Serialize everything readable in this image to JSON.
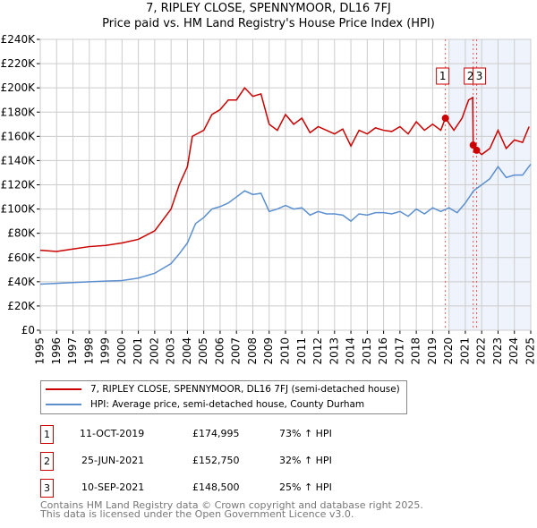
{
  "title1": "7, RIPLEY CLOSE, SPENNYMOOR, DL16 7FJ",
  "title2": "Price paid vs. HM Land Registry's House Price Index (HPI)",
  "chart_data": {
    "type": "line",
    "title": "7, RIPLEY CLOSE, SPENNYMOOR, DL16 7FJ - Price paid vs. HM Land Registry's House Price Index (HPI)",
    "xlim": [
      1995,
      2025
    ],
    "ylim": [
      0,
      240000
    ],
    "yticks": [
      0,
      20000,
      40000,
      60000,
      80000,
      100000,
      120000,
      140000,
      160000,
      180000,
      200000,
      220000,
      240000
    ],
    "ytick_labels": [
      "£0",
      "£20K",
      "£40K",
      "£60K",
      "£80K",
      "£100K",
      "£120K",
      "£140K",
      "£160K",
      "£180K",
      "£200K",
      "£220K",
      "£240K"
    ],
    "xticks": [
      1995,
      1996,
      1997,
      1998,
      1999,
      2000,
      2001,
      2002,
      2003,
      2004,
      2005,
      2006,
      2007,
      2008,
      2009,
      2010,
      2011,
      2012,
      2013,
      2014,
      2015,
      2016,
      2017,
      2018,
      2019,
      2020,
      2021,
      2022,
      2023,
      2024,
      2025
    ],
    "grid": true,
    "shaded_region": [
      2020,
      2025
    ],
    "colors": {
      "property": "#cc0000",
      "hpi": "#5b8fd0",
      "shade": "#eef3fc"
    },
    "series": [
      {
        "name": "7, RIPLEY CLOSE, SPENNYMOOR, DL16 7FJ (semi-detached house)",
        "color": "#cc0000",
        "x": [
          1995,
          1996,
          1997,
          1998,
          1999,
          2000,
          2001,
          2002,
          2003,
          2003.5,
          2004,
          2004.3,
          2005,
          2005.5,
          2006,
          2006.5,
          2007,
          2007.5,
          2008,
          2008.5,
          2009,
          2009.5,
          2010,
          2010.5,
          2011,
          2011.5,
          2012,
          2012.5,
          2013,
          2013.5,
          2014,
          2014.5,
          2015,
          2015.5,
          2016,
          2016.5,
          2017,
          2017.5,
          2018,
          2018.5,
          2019,
          2019.5,
          2019.78,
          2020.3,
          2020.8,
          2021.2,
          2021.45,
          2021.48,
          2021.69,
          2022,
          2022.5,
          2023,
          2023.5,
          2024,
          2024.5,
          2024.9
        ],
        "y": [
          66000,
          65000,
          67000,
          69000,
          70000,
          72000,
          75000,
          82000,
          100000,
          120000,
          135000,
          160000,
          165000,
          178000,
          182000,
          190000,
          190000,
          200000,
          193000,
          195000,
          170000,
          165000,
          178000,
          170000,
          175000,
          163000,
          168000,
          165000,
          162000,
          166000,
          152000,
          165000,
          162000,
          167000,
          165000,
          164000,
          168000,
          162000,
          172000,
          165000,
          170000,
          165000,
          174995,
          165000,
          175000,
          190000,
          192000,
          152750,
          148500,
          145000,
          150000,
          165000,
          150000,
          157000,
          155000,
          168000
        ]
      },
      {
        "name": "HPI: Average price, semi-detached house, County Durham",
        "color": "#5b8fd0",
        "x": [
          1995,
          1998,
          2000,
          2001,
          2002,
          2003,
          2003.5,
          2004,
          2004.5,
          2005,
          2005.5,
          2006,
          2006.5,
          2007,
          2007.5,
          2008,
          2008.5,
          2009,
          2009.5,
          2010,
          2010.5,
          2011,
          2011.5,
          2012,
          2012.5,
          2013,
          2013.5,
          2014,
          2014.5,
          2015,
          2015.5,
          2016,
          2016.5,
          2017,
          2017.5,
          2018,
          2018.5,
          2019,
          2019.5,
          2020,
          2020.5,
          2021,
          2021.5,
          2022,
          2022.5,
          2023,
          2023.5,
          2024,
          2024.5,
          2025
        ],
        "y": [
          38000,
          40000,
          41000,
          43000,
          47000,
          55000,
          63000,
          72000,
          88000,
          93000,
          100000,
          102000,
          105000,
          110000,
          115000,
          112000,
          113000,
          98000,
          100000,
          103000,
          100000,
          101000,
          95000,
          98000,
          96000,
          96000,
          95000,
          90000,
          96000,
          95000,
          97000,
          97000,
          96000,
          98000,
          94000,
          100000,
          96000,
          101000,
          98000,
          101000,
          97000,
          105000,
          115000,
          120000,
          125000,
          135000,
          126000,
          128000,
          128000,
          137000
        ]
      }
    ],
    "sales": [
      {
        "label": "1",
        "date": "11-OCT-2019",
        "x": 2019.78,
        "price": "£174,995",
        "value": 174995,
        "hpi": "73% ↑ HPI"
      },
      {
        "label": "2",
        "date": "25-JUN-2021",
        "x": 2021.48,
        "price": "£152,750",
        "value": 152750,
        "hpi": "32% ↑ HPI"
      },
      {
        "label": "3",
        "date": "10-SEP-2021",
        "x": 2021.69,
        "price": "£148,500",
        "value": 148500,
        "hpi": "25% ↑ HPI"
      }
    ]
  },
  "footer1": "Contains HM Land Registry data © Crown copyright and database right 2025.",
  "footer2": "This data is licensed under the Open Government Licence v3.0."
}
